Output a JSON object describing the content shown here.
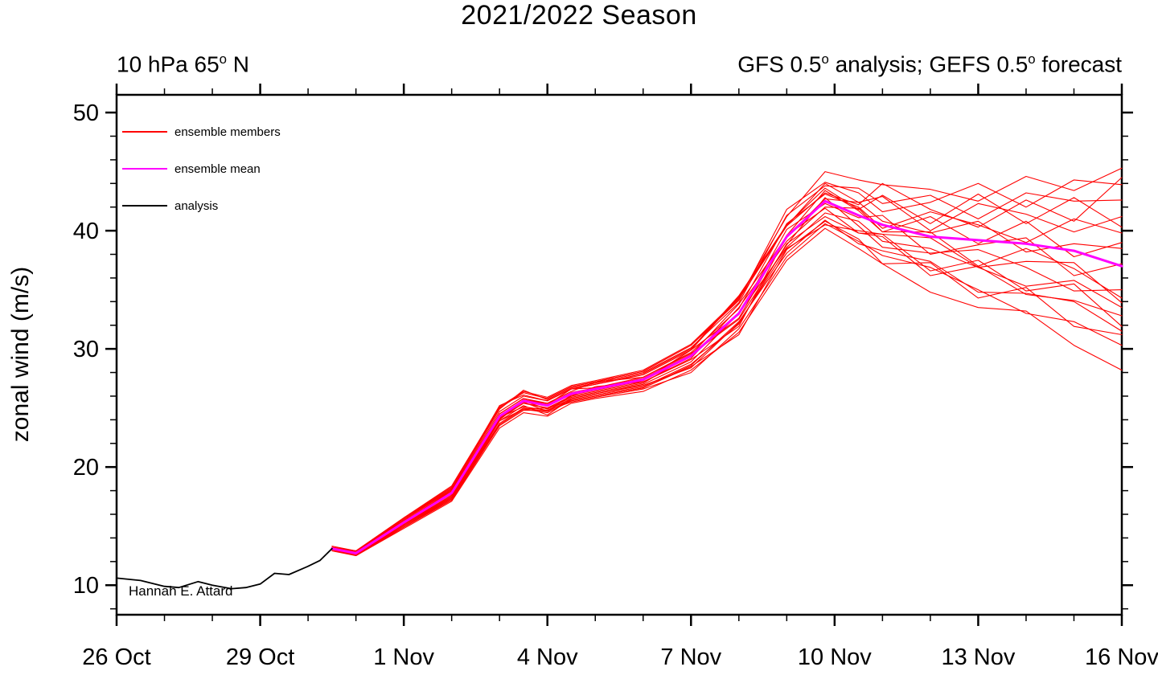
{
  "title": "2021/2022 Season",
  "subtitle_left": {
    "segments": [
      {
        "t": "10 hPa 65"
      },
      {
        "t": "o",
        "sup": true
      },
      {
        "t": " N"
      }
    ]
  },
  "subtitle_right": {
    "segments": [
      {
        "t": "GFS 0.5"
      },
      {
        "t": "o",
        "sup": true
      },
      {
        "t": " analysis; GEFS 0.5"
      },
      {
        "t": "o",
        "sup": true
      },
      {
        "t": " forecast"
      }
    ]
  },
  "credit": "Hannah E. Attard",
  "legend": [
    {
      "label": "ensemble members",
      "color": "#ff0000"
    },
    {
      "label": "ensemble mean",
      "color": "#ff00ff"
    },
    {
      "label": "analysis",
      "color": "#000000"
    }
  ],
  "chart_data": {
    "type": "line",
    "title": "2021/2022 Season",
    "x_axis": {
      "range_days": [
        0,
        21
      ],
      "tick_labels": [
        "26 Oct",
        "29 Oct",
        "1 Nov",
        "4 Nov",
        "7 Nov",
        "10 Nov",
        "13 Nov",
        "16 Nov"
      ],
      "tick_positions": [
        0,
        3,
        6,
        9,
        12,
        15,
        18,
        21
      ],
      "minor_interval": 1
    },
    "y_axis": {
      "label": "zonal wind (m/s)",
      "range": [
        7.5,
        51.5
      ],
      "tick_positions": [
        10,
        20,
        30,
        40,
        50
      ],
      "minor_interval": 2
    },
    "series": {
      "analysis": {
        "color": "#000000",
        "x": [
          0,
          0.5,
          1,
          1.3,
          1.7,
          2,
          2.4,
          2.7,
          3,
          3.3,
          3.6,
          4,
          4.25,
          4.5
        ],
        "y": [
          10.6,
          10.4,
          9.9,
          9.8,
          10.3,
          10.0,
          9.7,
          9.8,
          10.1,
          11.0,
          10.9,
          11.6,
          12.1,
          13.1
        ]
      },
      "ensemble_mean": {
        "color": "#ff00ff",
        "x": [
          4.5,
          5,
          6,
          7,
          8,
          8.5,
          9,
          9.5,
          10,
          11,
          12,
          13,
          14,
          14.8,
          15.5,
          16,
          17,
          18,
          19,
          20,
          21
        ],
        "y": [
          13.1,
          12.7,
          15.3,
          17.8,
          24.3,
          25.6,
          25.2,
          26.2,
          26.6,
          27.4,
          29.4,
          33.0,
          39.5,
          42.5,
          41.3,
          40.5,
          39.5,
          39.2,
          38.9,
          38.3,
          37.0
        ]
      },
      "ensemble_members": {
        "color": "#ff0000",
        "x": [
          4.5,
          5,
          6,
          7,
          8,
          8.5,
          9,
          9.5,
          10,
          11,
          12,
          13,
          14,
          14.8,
          15.5,
          16,
          17,
          18,
          19,
          20,
          21
        ],
        "members": [
          [
            12.9,
            12.5,
            14.8,
            17.1,
            23.3,
            24.6,
            24.3,
            25.4,
            25.8,
            26.4,
            28.2,
            31.4,
            37.5,
            40.2,
            38.5,
            37.2,
            34.8,
            33.5,
            33.2,
            30.3,
            28.2
          ],
          [
            13.0,
            12.5,
            14.9,
            17.2,
            23.5,
            24.8,
            24.8,
            25.5,
            25.9,
            26.6,
            28.0,
            31.7,
            37.8,
            40.6,
            39.1,
            37.9,
            36.9,
            35.0,
            33.0,
            32.3,
            30.3
          ],
          [
            13.0,
            12.5,
            15.0,
            17.3,
            23.9,
            24.9,
            24.6,
            25.6,
            26.0,
            26.7,
            28.6,
            32.3,
            38.1,
            40.9,
            38.9,
            38.3,
            37.4,
            34.8,
            34.7,
            34.0,
            31.5
          ],
          [
            13.0,
            12.6,
            15.0,
            17.4,
            23.7,
            25.0,
            24.7,
            25.7,
            26.1,
            26.8,
            28.7,
            32.1,
            38.9,
            41.2,
            39.8,
            39.5,
            36.2,
            37.0,
            34.6,
            34.1,
            32.8
          ],
          [
            13.0,
            12.6,
            15.1,
            17.5,
            23.9,
            25.2,
            24.4,
            25.8,
            26.2,
            27.0,
            28.9,
            33.0,
            38.6,
            41.5,
            40.8,
            39.1,
            38.5,
            36.9,
            35.3,
            35.8,
            33.5
          ],
          [
            13.0,
            12.6,
            15.1,
            17.6,
            24.0,
            25.6,
            24.9,
            25.9,
            26.3,
            27.1,
            29.5,
            32.5,
            38.8,
            42.8,
            40.4,
            38.6,
            38.1,
            38.4,
            36.9,
            34.9,
            35.0
          ],
          [
            13.1,
            12.7,
            15.2,
            18.1,
            24.1,
            25.4,
            25.0,
            26.0,
            26.4,
            27.2,
            29.2,
            33.5,
            39.1,
            42.0,
            41.9,
            39.9,
            39.9,
            37.0,
            38.5,
            36.8,
            34.3
          ],
          [
            13.1,
            12.7,
            15.3,
            17.7,
            24.2,
            25.5,
            24.7,
            26.1,
            26.5,
            27.3,
            29.9,
            32.9,
            40.1,
            42.3,
            41.1,
            41.3,
            38.0,
            38.8,
            39.4,
            36.2,
            37.2
          ],
          [
            13.1,
            12.7,
            15.3,
            17.9,
            24.0,
            25.7,
            25.3,
            26.3,
            26.7,
            27.5,
            29.5,
            33.8,
            39.5,
            42.7,
            42.4,
            40.8,
            39.8,
            40.8,
            38.2,
            38.9,
            38.5
          ],
          [
            13.2,
            12.8,
            15.4,
            18.0,
            24.5,
            25.8,
            25.4,
            26.4,
            27.2,
            27.6,
            29.7,
            33.4,
            40.6,
            43.1,
            42.0,
            40.2,
            41.6,
            40.5,
            39.0,
            41.0,
            39.8
          ],
          [
            13.2,
            12.8,
            15.5,
            18.1,
            24.7,
            26.0,
            25.6,
            26.6,
            27.0,
            27.8,
            29.9,
            34.4,
            40.4,
            44.0,
            42.4,
            42.9,
            40.0,
            42.3,
            41.4,
            39.9,
            41.2
          ],
          [
            13.2,
            12.8,
            15.6,
            18.2,
            24.9,
            26.5,
            25.7,
            26.7,
            27.1,
            28.0,
            30.1,
            33.9,
            41.3,
            43.8,
            43.6,
            42.3,
            43.0,
            41.0,
            43.2,
            42.5,
            42.6
          ],
          [
            13.2,
            12.9,
            15.6,
            18.3,
            25.0,
            26.3,
            25.8,
            26.8,
            27.2,
            28.1,
            30.3,
            34.1,
            41.8,
            44.1,
            43.2,
            41.6,
            42.4,
            44.0,
            42.0,
            44.3,
            43.9
          ],
          [
            13.3,
            12.9,
            15.7,
            18.4,
            25.1,
            26.4,
            25.9,
            26.9,
            27.3,
            28.2,
            30.4,
            34.3,
            41.2,
            45.0,
            44.3,
            43.9,
            43.5,
            42.5,
            44.6,
            43.4,
            45.3
          ],
          [
            13.0,
            12.5,
            14.9,
            17.3,
            23.6,
            24.9,
            25.0,
            25.6,
            26.0,
            26.7,
            28.5,
            31.2,
            38.4,
            40.8,
            39.3,
            37.2,
            37.3,
            34.3,
            35.2,
            31.9,
            31.2
          ],
          [
            13.0,
            12.6,
            15.1,
            17.4,
            24.2,
            25.1,
            24.8,
            25.8,
            26.2,
            26.9,
            28.4,
            32.2,
            38.5,
            40.5,
            40.0,
            39.7,
            36.6,
            37.5,
            34.9,
            35.5,
            31.9
          ],
          [
            13.1,
            12.6,
            15.2,
            17.6,
            24.1,
            25.4,
            25.0,
            26.0,
            26.8,
            27.2,
            29.1,
            31.9,
            39.6,
            41.9,
            39.8,
            39.7,
            39.4,
            36.9,
            37.4,
            37.3,
            33.9
          ],
          [
            13.1,
            12.7,
            15.4,
            17.9,
            24.5,
            25.8,
            25.3,
            26.6,
            26.7,
            27.6,
            29.6,
            32.6,
            39.6,
            43.4,
            41.7,
            39.9,
            41.2,
            38.9,
            40.8,
            37.8,
            39.0
          ],
          [
            13.2,
            12.8,
            15.5,
            18.2,
            25.2,
            26.1,
            25.6,
            26.6,
            27.0,
            27.9,
            30.0,
            34.5,
            40.5,
            43.6,
            41.8,
            43.0,
            40.6,
            43.1,
            40.6,
            42.8,
            40.3
          ],
          [
            13.2,
            12.9,
            15.7,
            18.3,
            25.0,
            26.3,
            25.8,
            26.8,
            27.2,
            28.1,
            30.3,
            34.2,
            40.4,
            43.2,
            42.2,
            44.0,
            41.8,
            40.3,
            42.6,
            40.8,
            44.5
          ]
        ]
      }
    }
  }
}
